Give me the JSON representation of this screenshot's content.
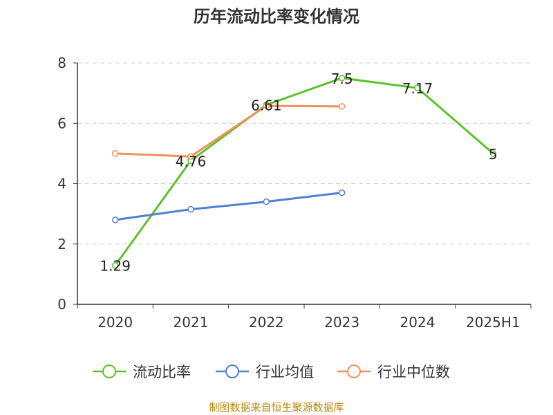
{
  "chart_data": {
    "type": "line",
    "title": "历年流动比率变化情况",
    "categories": [
      "2020",
      "2021",
      "2022",
      "2023",
      "2024",
      "2025H1"
    ],
    "ylim": [
      0,
      8
    ],
    "yticks": [
      "0",
      "2",
      "4",
      "6",
      "8"
    ],
    "grid": true,
    "legend_position": "bottom-center",
    "series": [
      {
        "name": "流动比率",
        "color": "#5cc12b",
        "values": [
          1.29,
          4.76,
          6.61,
          7.5,
          7.17,
          5
        ],
        "labels": [
          "1.29",
          "4.76",
          "6.61",
          "7.5",
          "7.17",
          "5"
        ]
      },
      {
        "name": "行业均值",
        "color": "#4f7fd6",
        "values": [
          2.8,
          3.15,
          3.4,
          3.7,
          null,
          null
        ]
      },
      {
        "name": "行业中位数",
        "color": "#f28f5a",
        "values": [
          5.0,
          4.9,
          6.58,
          6.56,
          null,
          null
        ]
      }
    ],
    "source": "制图数据来自恒生聚源数据库"
  }
}
